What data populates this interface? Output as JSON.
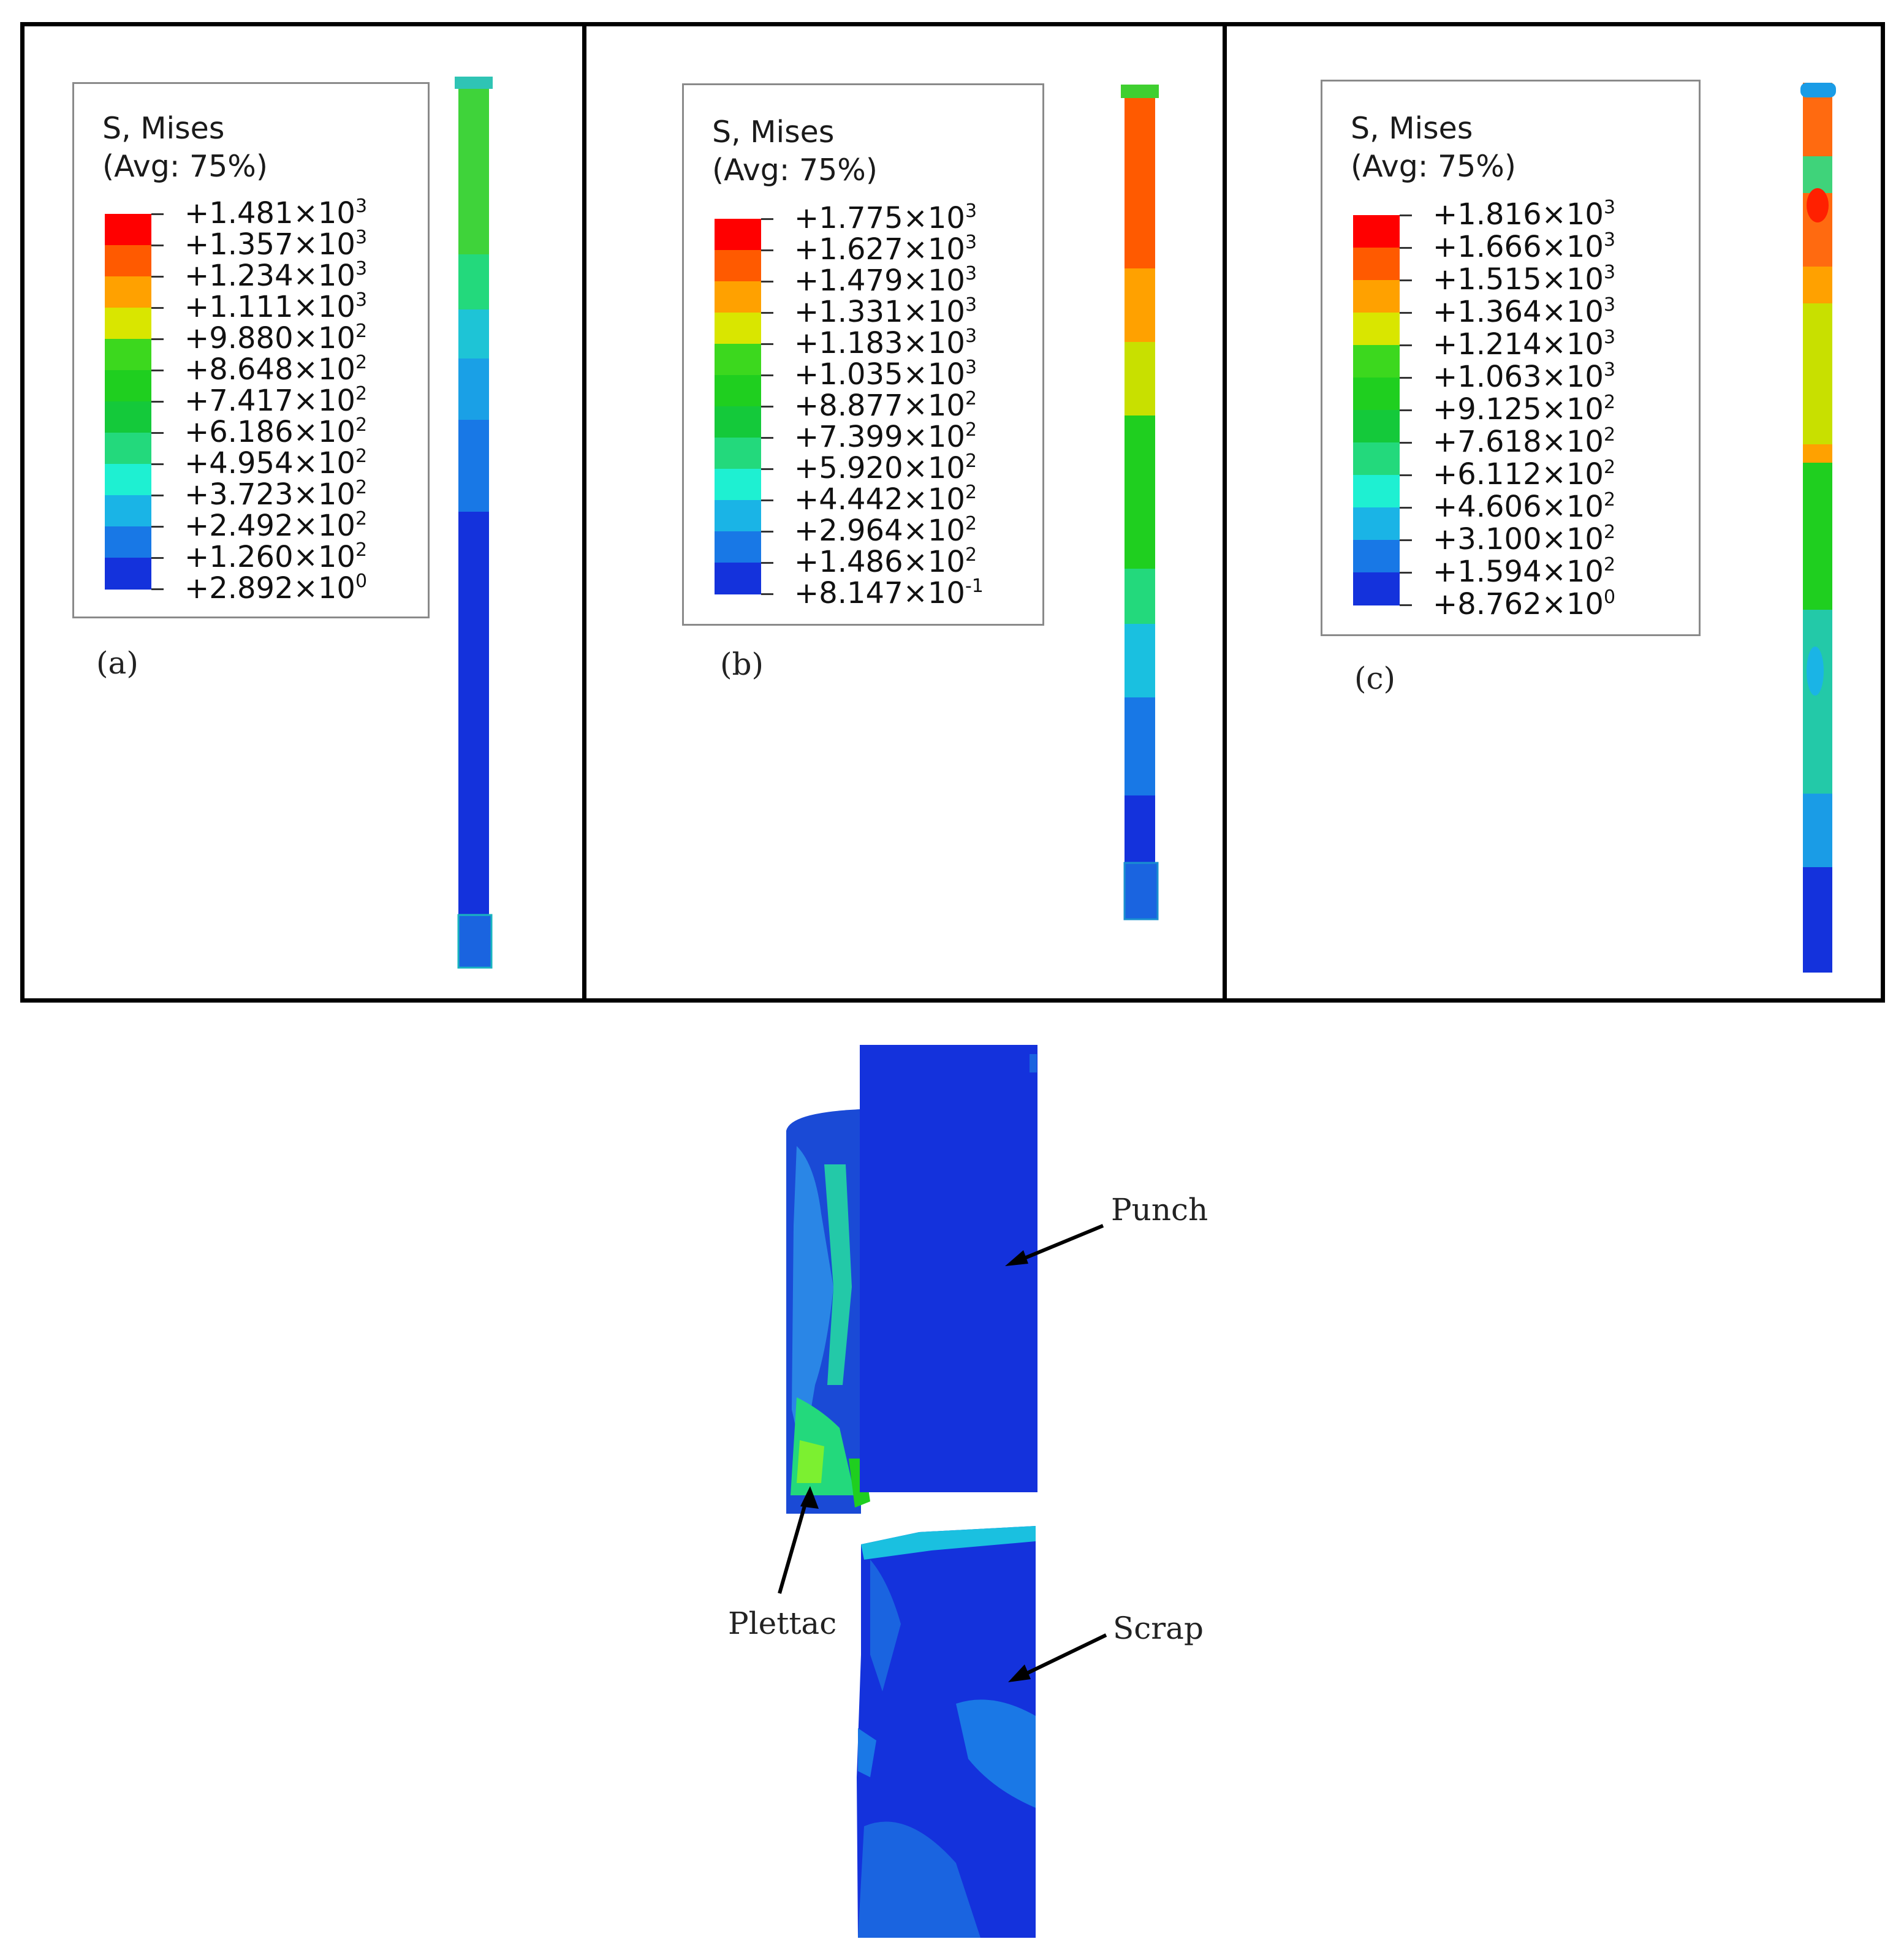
{
  "panels": [
    {
      "id": "a",
      "label": "(a)",
      "legend": {
        "title_line1": "S, Mises",
        "title_line2": "(Avg: 75%)",
        "ticks": [
          {
            "mantissa": "+1.481",
            "exponent": "3"
          },
          {
            "mantissa": "+1.357",
            "exponent": "3"
          },
          {
            "mantissa": "+1.234",
            "exponent": "3"
          },
          {
            "mantissa": "+1.111",
            "exponent": "3"
          },
          {
            "mantissa": "+9.880",
            "exponent": "2"
          },
          {
            "mantissa": "+8.648",
            "exponent": "2"
          },
          {
            "mantissa": "+7.417",
            "exponent": "2"
          },
          {
            "mantissa": "+6.186",
            "exponent": "2"
          },
          {
            "mantissa": "+4.954",
            "exponent": "2"
          },
          {
            "mantissa": "+3.723",
            "exponent": "2"
          },
          {
            "mantissa": "+2.492",
            "exponent": "2"
          },
          {
            "mantissa": "+1.260",
            "exponent": "2"
          },
          {
            "mantissa": "+2.892",
            "exponent": "0"
          }
        ]
      }
    },
    {
      "id": "b",
      "label": "(b)",
      "legend": {
        "title_line1": "S, Mises",
        "title_line2": "(Avg: 75%)",
        "ticks": [
          {
            "mantissa": "+1.775",
            "exponent": "3"
          },
          {
            "mantissa": "+1.627",
            "exponent": "3"
          },
          {
            "mantissa": "+1.479",
            "exponent": "3"
          },
          {
            "mantissa": "+1.331",
            "exponent": "3"
          },
          {
            "mantissa": "+1.183",
            "exponent": "3"
          },
          {
            "mantissa": "+1.035",
            "exponent": "3"
          },
          {
            "mantissa": "+8.877",
            "exponent": "2"
          },
          {
            "mantissa": "+7.399",
            "exponent": "2"
          },
          {
            "mantissa": "+5.920",
            "exponent": "2"
          },
          {
            "mantissa": "+4.442",
            "exponent": "2"
          },
          {
            "mantissa": "+2.964",
            "exponent": "2"
          },
          {
            "mantissa": "+1.486",
            "exponent": "2"
          },
          {
            "mantissa": "+8.147",
            "exponent": "-1"
          }
        ]
      }
    },
    {
      "id": "c",
      "label": "(c)",
      "legend": {
        "title_line1": "S, Mises",
        "title_line2": "(Avg: 75%)",
        "ticks": [
          {
            "mantissa": "+1.816",
            "exponent": "3"
          },
          {
            "mantissa": "+1.666",
            "exponent": "3"
          },
          {
            "mantissa": "+1.515",
            "exponent": "3"
          },
          {
            "mantissa": "+1.364",
            "exponent": "3"
          },
          {
            "mantissa": "+1.214",
            "exponent": "3"
          },
          {
            "mantissa": "+1.063",
            "exponent": "3"
          },
          {
            "mantissa": "+9.125",
            "exponent": "2"
          },
          {
            "mantissa": "+7.618",
            "exponent": "2"
          },
          {
            "mantissa": "+6.112",
            "exponent": "2"
          },
          {
            "mantissa": "+4.606",
            "exponent": "2"
          },
          {
            "mantissa": "+3.100",
            "exponent": "2"
          },
          {
            "mantissa": "+1.594",
            "exponent": "2"
          },
          {
            "mantissa": "+8.762",
            "exponent": "0"
          }
        ]
      }
    }
  ],
  "colormap": [
    "#ff0000",
    "#ff5a00",
    "#ffa100",
    "#d9e600",
    "#3cd81e",
    "#1fcf1f",
    "#14c93a",
    "#23d97c",
    "#1ef0d2",
    "#1ab4e6",
    "#1878e6",
    "#1432dc"
  ],
  "lower_figure": {
    "callouts": {
      "punch": "Punch",
      "plettac": "Plettac",
      "scrap": "Scrap"
    }
  }
}
